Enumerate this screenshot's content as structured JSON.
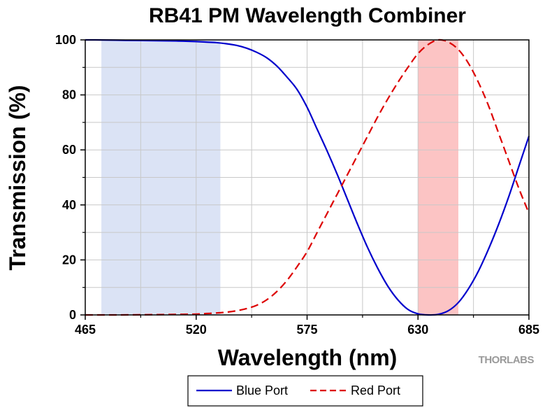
{
  "chart_data": {
    "type": "line",
    "title": "RB41 PM Wavelength Combiner",
    "xlabel": "Wavelength (nm)",
    "ylabel": "Transmission (%)",
    "xlim": [
      465,
      685
    ],
    "ylim": [
      0,
      100
    ],
    "x_ticks": [
      465,
      520,
      575,
      630,
      685
    ],
    "y_ticks": [
      0,
      20,
      40,
      60,
      80,
      100
    ],
    "grid": true,
    "legend_position": "bottom",
    "shaded_regions": [
      {
        "x_range": [
          473,
          532
        ],
        "color": "#dbe3f5"
      },
      {
        "x_range": [
          630,
          650
        ],
        "color": "#fcc4c4"
      }
    ],
    "series": [
      {
        "name": "Blue Port",
        "color": "#0000cc",
        "dash": "solid",
        "x": [
          465,
          470,
          480,
          490,
          500,
          510,
          520,
          525,
          530,
          535,
          540,
          545,
          550,
          555,
          560,
          565,
          570,
          575,
          580,
          585,
          590,
          595,
          600,
          605,
          610,
          615,
          620,
          625,
          630,
          635,
          640,
          645,
          650,
          655,
          660,
          665,
          670,
          675,
          680,
          685
        ],
        "values": [
          100,
          100,
          99.9,
          99.8,
          99.7,
          99.6,
          99.4,
          99.2,
          99,
          98.6,
          98,
          97,
          95.5,
          93.5,
          90.5,
          86.5,
          82,
          75.5,
          67.5,
          59.5,
          51,
          42,
          33,
          24.5,
          17,
          10.5,
          5.5,
          2,
          0.4,
          0,
          0.2,
          1.5,
          4.5,
          9.5,
          16,
          24,
          33,
          43,
          54,
          65
        ]
      },
      {
        "name": "Red Port",
        "color": "#dd0000",
        "dash": "dashed",
        "x": [
          465,
          480,
          500,
          510,
          520,
          525,
          530,
          535,
          540,
          545,
          550,
          555,
          560,
          565,
          570,
          575,
          580,
          585,
          590,
          595,
          600,
          605,
          610,
          615,
          620,
          625,
          630,
          635,
          640,
          645,
          650,
          655,
          660,
          665,
          670,
          675,
          680,
          685
        ],
        "values": [
          0,
          0,
          0.1,
          0.2,
          0.3,
          0.5,
          0.7,
          1,
          1.5,
          2.3,
          3.5,
          5.5,
          8.5,
          12.5,
          17.5,
          23,
          30,
          37,
          44,
          51,
          58,
          65,
          72,
          78.5,
          84.5,
          90,
          95,
          98.3,
          100,
          99.2,
          96.5,
          91.5,
          84.5,
          76,
          66,
          56,
          46,
          37
        ]
      }
    ]
  },
  "branding": {
    "logo_text": "THORLABS"
  }
}
